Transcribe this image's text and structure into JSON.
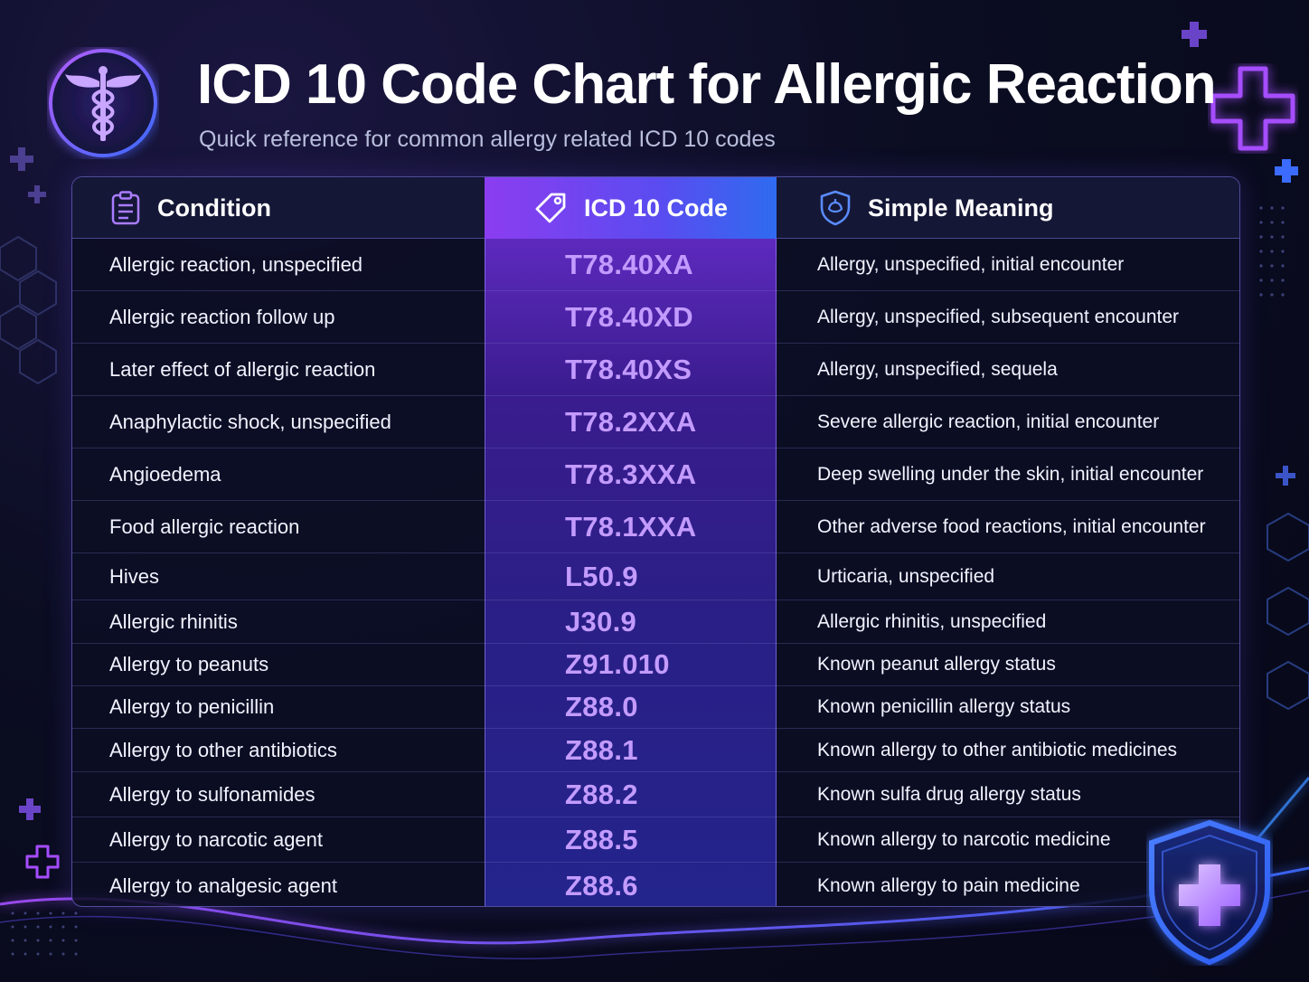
{
  "header": {
    "title": "ICD 10 Code Chart for Allergic Reaction",
    "subtitle": "Quick reference for common allergy related ICD 10 codes",
    "logo_icon": "caduceus-icon"
  },
  "colors": {
    "accent_purple": "#8b3df0",
    "accent_blue": "#2f6bf0",
    "code_text": "#c39bff",
    "background": "#0b0d22"
  },
  "table": {
    "columns": [
      {
        "label": "Condition",
        "icon": "clipboard-icon"
      },
      {
        "label": "ICD 10 Code",
        "icon": "tag-icon"
      },
      {
        "label": "Simple Meaning",
        "icon": "shield-icon"
      }
    ],
    "rows": [
      {
        "condition": "Allergic reaction, unspecified",
        "code": "T78.40XA",
        "meaning": "Allergy, unspecified, initial encounter"
      },
      {
        "condition": "Allergic reaction follow up",
        "code": "T78.40XD",
        "meaning": "Allergy, unspecified, subsequent encounter"
      },
      {
        "condition": "Later effect of allergic reaction",
        "code": "T78.40XS",
        "meaning": "Allergy, unspecified, sequela"
      },
      {
        "condition": "Anaphylactic shock, unspecified",
        "code": "T78.2XXA",
        "meaning": "Severe allergic reaction, initial encounter"
      },
      {
        "condition": "Angioedema",
        "code": "T78.3XXA",
        "meaning": "Deep swelling under the skin, initial encounter"
      },
      {
        "condition": "Food allergic reaction",
        "code": "T78.1XXA",
        "meaning": "Other adverse food reactions, initial encounter"
      },
      {
        "condition": "Hives",
        "code": "L50.9",
        "meaning": "Urticaria, unspecified"
      },
      {
        "condition": "Allergic rhinitis",
        "code": "J30.9",
        "meaning": "Allergic rhinitis, unspecified"
      },
      {
        "condition": "Allergy to peanuts",
        "code": "Z91.010",
        "meaning": "Known peanut allergy status"
      },
      {
        "condition": "Allergy to penicillin",
        "code": "Z88.0",
        "meaning": "Known penicillin allergy status"
      },
      {
        "condition": "Allergy to other antibiotics",
        "code": "Z88.1",
        "meaning": "Known allergy to other antibiotic medicines"
      },
      {
        "condition": "Allergy to sulfonamides",
        "code": "Z88.2",
        "meaning": "Known sulfa drug allergy status"
      },
      {
        "condition": "Allergy to narcotic agent",
        "code": "Z88.5",
        "meaning": "Known allergy to narcotic medicine"
      },
      {
        "condition": "Allergy to analgesic agent",
        "code": "Z88.6",
        "meaning": "Known allergy to pain medicine"
      }
    ]
  },
  "decor": {
    "corner_icon": "shield-plus-icon"
  }
}
